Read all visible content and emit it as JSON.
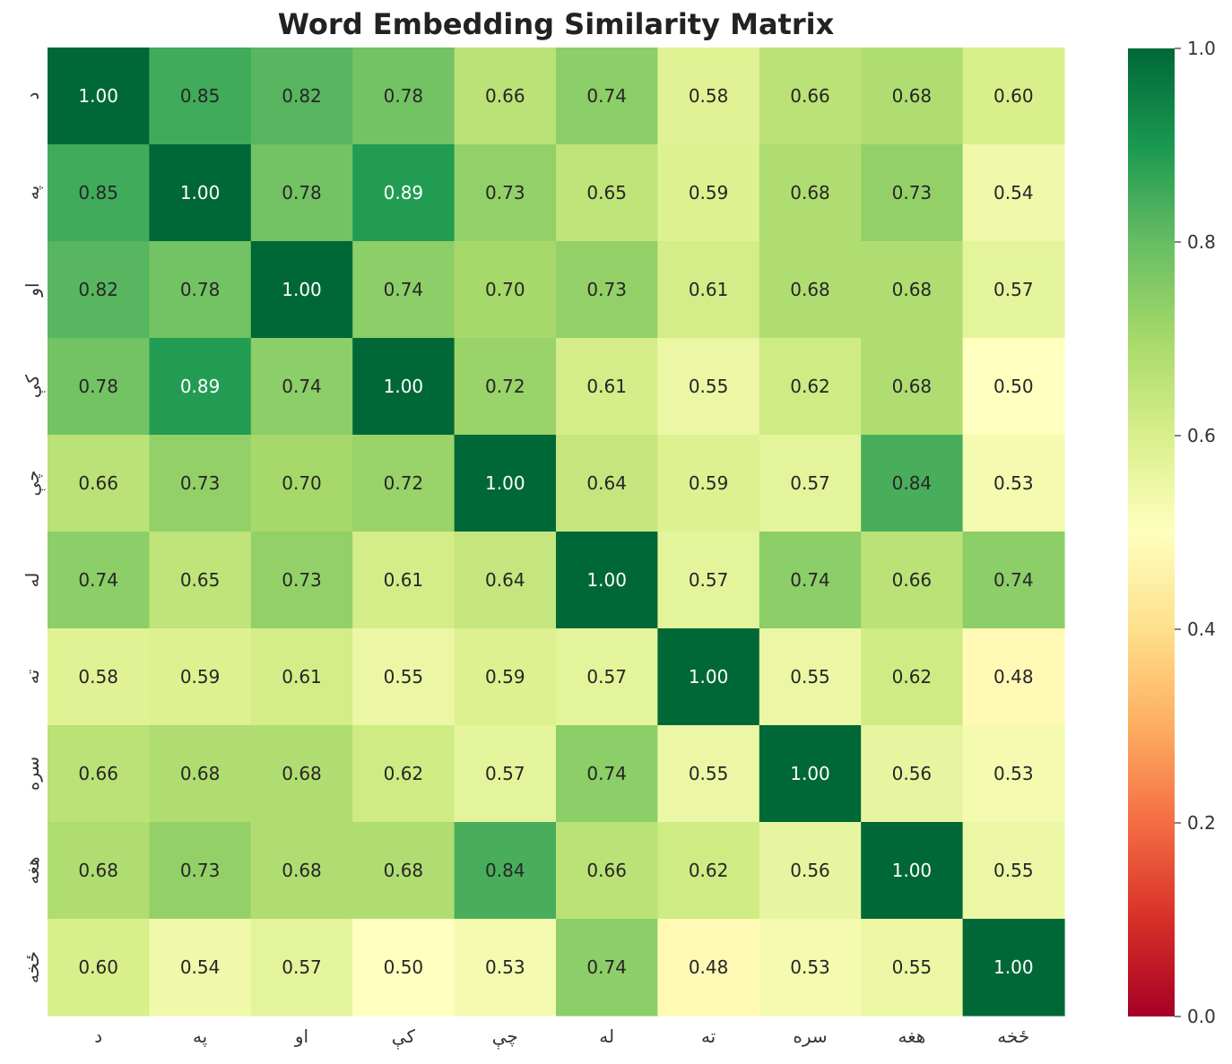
{
  "chart_data": {
    "type": "heatmap",
    "title": "Word Embedding Similarity Matrix",
    "x_labels": [
      "د",
      "په",
      "او",
      "کې",
      "چې",
      "له",
      "ته",
      "سره",
      "هغه",
      "ځخه"
    ],
    "y_labels": [
      "د",
      "په",
      "او",
      "کې",
      "چې",
      "له",
      "ته",
      "سره",
      "هغه",
      "ځخه"
    ],
    "values": [
      [
        1.0,
        0.85,
        0.82,
        0.78,
        0.66,
        0.74,
        0.58,
        0.66,
        0.68,
        0.6
      ],
      [
        0.85,
        1.0,
        0.78,
        0.89,
        0.73,
        0.65,
        0.59,
        0.68,
        0.73,
        0.54
      ],
      [
        0.82,
        0.78,
        1.0,
        0.74,
        0.7,
        0.73,
        0.61,
        0.68,
        0.68,
        0.57
      ],
      [
        0.78,
        0.89,
        0.74,
        1.0,
        0.72,
        0.61,
        0.55,
        0.62,
        0.68,
        0.5
      ],
      [
        0.66,
        0.73,
        0.7,
        0.72,
        1.0,
        0.64,
        0.59,
        0.57,
        0.84,
        0.53
      ],
      [
        0.74,
        0.65,
        0.73,
        0.61,
        0.64,
        1.0,
        0.57,
        0.74,
        0.66,
        0.74
      ],
      [
        0.58,
        0.59,
        0.61,
        0.55,
        0.59,
        0.57,
        1.0,
        0.55,
        0.62,
        0.48
      ],
      [
        0.66,
        0.68,
        0.68,
        0.62,
        0.57,
        0.74,
        0.55,
        1.0,
        0.56,
        0.53
      ],
      [
        0.68,
        0.73,
        0.68,
        0.68,
        0.84,
        0.66,
        0.62,
        0.56,
        1.0,
        0.55
      ],
      [
        0.6,
        0.54,
        0.57,
        0.5,
        0.53,
        0.74,
        0.48,
        0.53,
        0.55,
        1.0
      ]
    ],
    "value_range": [
      0.0,
      1.0
    ],
    "colormap": "RdYlGn",
    "colorbar_ticks": [
      "0.0",
      "0.2",
      "0.4",
      "0.6",
      "0.8",
      "1.0"
    ],
    "annotation_format": "2 decimals",
    "grid": false
  }
}
